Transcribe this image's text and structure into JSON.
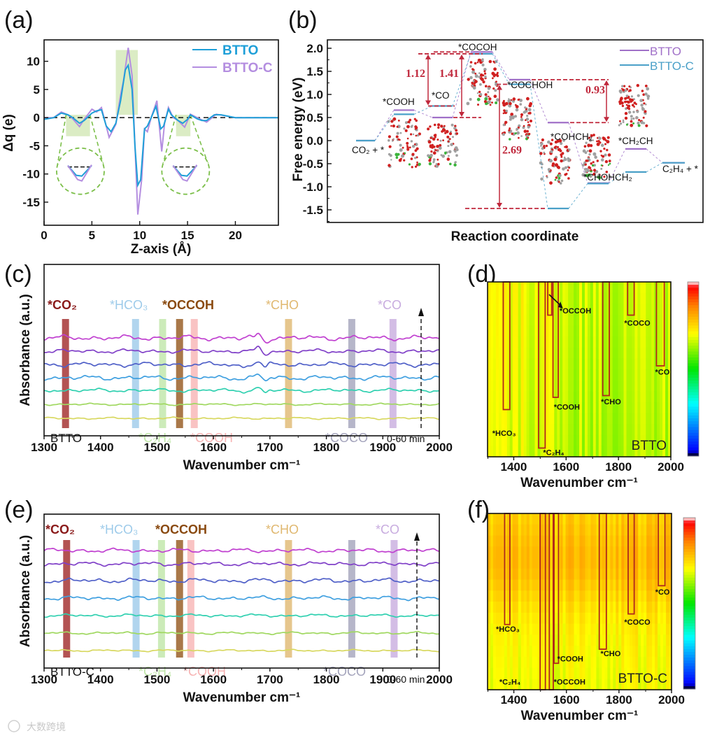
{
  "panel_labels": [
    "(a)",
    "(b)",
    "(c)",
    "(d)",
    "(e)",
    "(f)"
  ],
  "watermark": "大数跨境",
  "chart_data": [
    {
      "type": "line",
      "panel": "(a)",
      "xlabel": "Z-axis (Å)",
      "ylabel": "Δq (e)",
      "xlim": [
        0,
        24.5
      ],
      "ylim": [
        -19.1,
        13.8
      ],
      "xticks": [
        "0",
        "5",
        "10",
        "15",
        "20"
      ],
      "yticks": [
        "-15",
        "-10",
        "-5",
        "0",
        "5",
        "10"
      ],
      "grid": false,
      "legend_position": "top-right",
      "zero_line": 0,
      "highlight_x_ranges": [
        [
          2.3,
          4.8,
          -3.3,
          0.5
        ],
        [
          7.5,
          9.8,
          0.5,
          12
        ],
        [
          13.8,
          15.3,
          -3.3,
          0.5
        ]
      ],
      "insets": [
        {
          "center": [
            3.8,
            -9.5
          ]
        },
        {
          "center": [
            14.8,
            -9.5
          ]
        }
      ],
      "series": [
        {
          "name": "BTTO",
          "color": "#1e9fd8",
          "points": [
            [
              0,
              -0.3
            ],
            [
              1,
              0
            ],
            [
              1.8,
              0.8
            ],
            [
              2.5,
              0.5
            ],
            [
              3,
              0
            ],
            [
              3.7,
              -1
            ],
            [
              4.2,
              -0.5
            ],
            [
              5,
              0.8
            ],
            [
              5.5,
              1.2
            ],
            [
              6,
              1.4
            ],
            [
              6.5,
              -1.5
            ],
            [
              7,
              -2.5
            ],
            [
              7.5,
              -1
            ],
            [
              8,
              3
            ],
            [
              8.5,
              8.5
            ],
            [
              8.8,
              9.3
            ],
            [
              9.2,
              5
            ],
            [
              9.5,
              -5
            ],
            [
              9.8,
              -12
            ],
            [
              10.1,
              -11
            ],
            [
              10.5,
              -2
            ],
            [
              10.8,
              -1.5
            ],
            [
              11.2,
              0
            ],
            [
              11.7,
              2
            ],
            [
              12.2,
              -2
            ],
            [
              12.5,
              -1.5
            ],
            [
              13,
              1.5
            ],
            [
              13.3,
              0.5
            ],
            [
              14,
              -0.5
            ],
            [
              14.5,
              -1
            ],
            [
              15,
              -0.3
            ],
            [
              15.3,
              0.5
            ],
            [
              16,
              -0.2
            ],
            [
              16.5,
              -0.5
            ],
            [
              17,
              -0.5
            ],
            [
              17.8,
              0.5
            ],
            [
              18.5,
              0.5
            ],
            [
              20,
              0
            ],
            [
              24.5,
              0
            ]
          ]
        },
        {
          "name": "BTTO-C",
          "color": "#b48ee0",
          "points": [
            [
              0,
              0
            ],
            [
              1,
              0
            ],
            [
              1.8,
              1
            ],
            [
              2.5,
              0.5
            ],
            [
              3,
              -0.2
            ],
            [
              3.7,
              -1.6
            ],
            [
              4.2,
              -0.3
            ],
            [
              5,
              1.5
            ],
            [
              5.5,
              1
            ],
            [
              6,
              1.8
            ],
            [
              6.8,
              -3.5
            ],
            [
              7.5,
              -1.2
            ],
            [
              8,
              4
            ],
            [
              8.3,
              6.5
            ],
            [
              8.8,
              12.4
            ],
            [
              9.2,
              7.5
            ],
            [
              9.8,
              -17.2
            ],
            [
              10.2,
              -11
            ],
            [
              10.5,
              -2
            ],
            [
              10.8,
              -2.5
            ],
            [
              11.2,
              0
            ],
            [
              11.8,
              3
            ],
            [
              12.3,
              -6
            ],
            [
              12.6,
              -1
            ],
            [
              13,
              1.8
            ],
            [
              13.5,
              0
            ],
            [
              14,
              -0.5
            ],
            [
              14.7,
              -1.7
            ],
            [
              15.3,
              0.6
            ],
            [
              16,
              0
            ],
            [
              17,
              -0.8
            ],
            [
              18,
              0.6
            ],
            [
              19,
              0.3
            ],
            [
              20,
              0
            ],
            [
              24.5,
              0
            ]
          ]
        }
      ]
    },
    {
      "type": "line",
      "panel": "(b)",
      "xlabel": "Reaction coordinate",
      "ylabel": "Free energy (eV)",
      "ylim": [
        -1.77,
        2.18
      ],
      "yticks": [
        "-1.5",
        "-1.0",
        "-0.5",
        "0.0",
        "0.5",
        "1.0",
        "1.5",
        "2.0"
      ],
      "legend_position": "top-right",
      "series": [
        {
          "name": "BTTO",
          "color": "#a070c8"
        },
        {
          "name": "BTTO-C",
          "color": "#4aa0c8"
        }
      ],
      "steps": [
        {
          "label": "CO₂ + *",
          "BTTO": 0.0,
          "BTTO-C": 0.0
        },
        {
          "label": "*COOH",
          "BTTO": 0.66,
          "BTTO-C": 0.57
        },
        {
          "label": "*CO",
          "BTTO": 0.5,
          "BTTO-C": 0.75
        },
        {
          "label": "*COCOH",
          "BTTO": 1.92,
          "BTTO-C": 1.88
        },
        {
          "label": "*COCHOH",
          "BTTO": 1.32,
          "BTTO-C": 1.22
        },
        {
          "label": "*COHCH₂",
          "BTTO": 0.39,
          "BTTO-C": -1.47
        },
        {
          "label": "*CHOHCH₂",
          "BTTO": -0.92,
          "BTTO-C": -0.93
        },
        {
          "label": "*CH₂CH",
          "BTTO": -0.18,
          "BTTO-C": -0.68
        },
        {
          "label": "C₂H₄ + *",
          "BTTO": -0.48,
          "BTTO-C": -0.48
        }
      ],
      "annotations": [
        {
          "text": "1.12",
          "from": 1.88,
          "to": 0.75
        },
        {
          "text": "1.41",
          "from": 1.88,
          "to": 0.5
        },
        {
          "text": "2.69",
          "from": 1.22,
          "to": -1.47
        },
        {
          "text": "0.93",
          "from": 1.32,
          "to": 0.39
        }
      ],
      "annotation_color": "#c0283c"
    },
    {
      "type": "line",
      "panel": "(c)",
      "xlabel": "Wavenumber cm⁻¹",
      "ylabel": "Absorbance (a.u.)",
      "xlim": [
        1300,
        2000
      ],
      "xticks": [
        "1300",
        "1400",
        "1500",
        "1600",
        "1700",
        "1800",
        "1900",
        "2000"
      ],
      "sample": "BTTO",
      "time_label": "0-60 min",
      "bands": [
        {
          "label": "*CO₂",
          "wavenumber": 1338,
          "color": "#a02828"
        },
        {
          "label": "*HCO₃",
          "wavenumber": 1462,
          "color": "#9ecbea"
        },
        {
          "label": "*C₂H₄",
          "wavenumber": 1510,
          "color": "#bfe6a8"
        },
        {
          "label": "*OCCOH",
          "wavenumber": 1540,
          "color": "#94561c"
        },
        {
          "label": "*COOH",
          "wavenumber": 1566,
          "color": "#f7b4b4"
        },
        {
          "label": "*CHO",
          "wavenumber": 1733,
          "color": "#e0b870"
        },
        {
          "label": "*COCO",
          "wavenumber": 1845,
          "color": "#a4a4bc"
        },
        {
          "label": "*CO",
          "wavenumber": 1918,
          "color": "#c8acdf"
        }
      ],
      "traces": [
        {
          "color": "#c040d0",
          "noise": 1.0
        },
        {
          "color": "#8040c8",
          "noise": 0.8
        },
        {
          "color": "#5060c8",
          "noise": 0.9
        },
        {
          "color": "#40a0e0",
          "noise": 0.9
        },
        {
          "color": "#30d0b0",
          "noise": 0.7
        },
        {
          "color": "#a0d860",
          "noise": 0.4
        },
        {
          "color": "#d8d860",
          "noise": 0.4
        }
      ]
    },
    {
      "type": "heatmap",
      "panel": "(d)",
      "xlabel": "Wavenumber cm⁻¹",
      "xlim": [
        1300,
        2000
      ],
      "xticks": [
        "1400",
        "1600",
        "1800",
        "2000"
      ],
      "sample": "BTTO",
      "value_range": [
        0.6,
        0.8
      ],
      "bands": [
        {
          "label": "*HCO₃",
          "range": [
            1360,
            1385
          ],
          "extent": 0.73
        },
        {
          "label": "*C₂H₄",
          "range": [
            1495,
            1520
          ],
          "extent": 0.95
        },
        {
          "label": "*OCCOH",
          "range": [
            1530,
            1545
          ],
          "extent": 0.19
        },
        {
          "label": "*COOH",
          "range": [
            1550,
            1570
          ],
          "extent": 0.66
        },
        {
          "label": "*CHO",
          "range": [
            1740,
            1765
          ],
          "extent": 0.65
        },
        {
          "label": "*COCO",
          "range": [
            1835,
            1860
          ],
          "extent": 0.19
        },
        {
          "label": "*CO",
          "range": [
            1945,
            1975
          ],
          "extent": 0.48
        }
      ]
    },
    {
      "type": "line",
      "panel": "(e)",
      "xlabel": "Wavenumber cm⁻¹",
      "ylabel": "Absorbance (a.u.)",
      "xlim": [
        1300,
        2000
      ],
      "xticks": [
        "1300",
        "1400",
        "1500",
        "1600",
        "1700",
        "1800",
        "1900",
        "2000"
      ],
      "sample": "BTTO-C",
      "time_label": "0-60 min",
      "bands": [
        {
          "label": "*CO₂",
          "wavenumber": 1340,
          "color": "#a02828"
        },
        {
          "label": "*HCO₃",
          "wavenumber": 1463,
          "color": "#9ecbea"
        },
        {
          "label": "*C₂H₄",
          "wavenumber": 1508,
          "color": "#bfe6a8"
        },
        {
          "label": "*OCCOH",
          "wavenumber": 1540,
          "color": "#94561c"
        },
        {
          "label": "*COOH",
          "wavenumber": 1560,
          "color": "#f7b4b4"
        },
        {
          "label": "*CHO",
          "wavenumber": 1733,
          "color": "#e0b870"
        },
        {
          "label": "*COCO",
          "wavenumber": 1845,
          "color": "#a4a4bc"
        },
        {
          "label": "*CO",
          "wavenumber": 1920,
          "color": "#c8acdf"
        }
      ],
      "traces": [
        {
          "color": "#c040d0",
          "noise": 0.8
        },
        {
          "color": "#8040c8",
          "noise": 0.8
        },
        {
          "color": "#5060c8",
          "noise": 0.9
        },
        {
          "color": "#40a0e0",
          "noise": 0.8
        },
        {
          "color": "#30d0b0",
          "noise": 0.6
        },
        {
          "color": "#a0d860",
          "noise": 0.5
        },
        {
          "color": "#d8d860",
          "noise": 0.4
        }
      ]
    },
    {
      "type": "heatmap",
      "panel": "(f)",
      "xlabel": "Wavenumber cm⁻¹",
      "xlim": [
        1300,
        2000
      ],
      "xticks": [
        "1400",
        "1600",
        "1800",
        "2000"
      ],
      "sample": "BTTO-C",
      "value_range": [
        0.64,
        0.84
      ],
      "bands": [
        {
          "label": "*HCO₃",
          "range": [
            1365,
            1385
          ],
          "extent": 0.63
        },
        {
          "label": "*C₂H₄",
          "range": [
            1500,
            1520
          ],
          "extent": 1.0
        },
        {
          "label": "*OCCOH",
          "range": [
            1535,
            1550
          ],
          "extent": 1.0
        },
        {
          "label": "*COOH",
          "range": [
            1553,
            1570
          ],
          "extent": 0.85
        },
        {
          "label": "*CHO",
          "range": [
            1725,
            1752
          ],
          "extent": 0.77
        },
        {
          "label": "*COCO",
          "range": [
            1835,
            1858
          ],
          "extent": 0.57
        },
        {
          "label": "*CO",
          "range": [
            1950,
            1975
          ],
          "extent": 0.41
        }
      ]
    }
  ]
}
